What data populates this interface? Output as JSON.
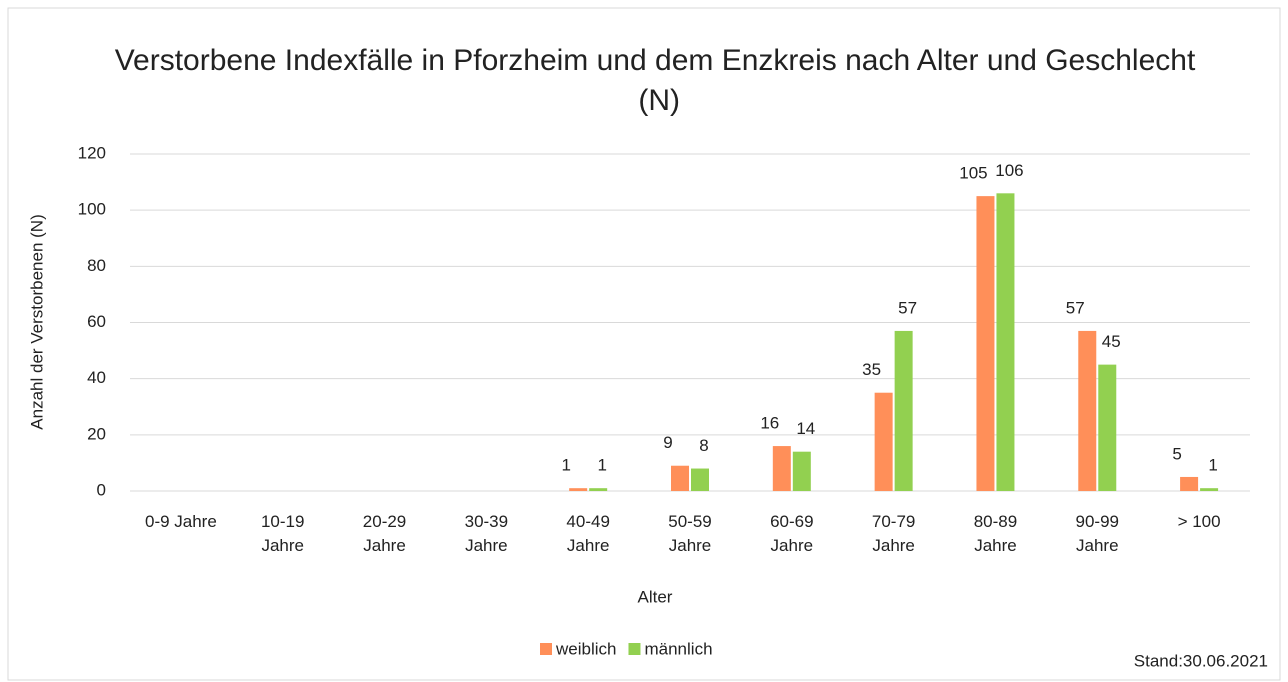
{
  "chart_data": {
    "type": "bar",
    "title": "Verstorbene Indexfälle in Pforzheim und dem Enzkreis nach Alter und Geschlecht (N)",
    "x_label": "Alter",
    "y_label": "Anzahl der Verstorbenen (N)",
    "annotation": "Stand:30.06.2021",
    "categories": [
      "0-9 Jahre",
      "10-19 Jahre",
      "20-29 Jahre",
      "30-39 Jahre",
      "40-49 Jahre",
      "50-59 Jahre",
      "60-69 Jahre",
      "70-79 Jahre",
      "80-89 Jahre",
      "90-99 Jahre",
      "> 100"
    ],
    "series": [
      {
        "name": "weiblich",
        "color": "#ff8f59",
        "values": [
          0,
          0,
          0,
          0,
          1,
          9,
          16,
          35,
          105,
          57,
          5
        ]
      },
      {
        "name": "männlich",
        "color": "#92d050",
        "values": [
          0,
          0,
          0,
          0,
          1,
          8,
          14,
          57,
          106,
          45,
          1
        ]
      }
    ],
    "ylim": [
      0,
      120
    ],
    "yticks": [
      0,
      20,
      40,
      60,
      80,
      100,
      120
    ],
    "grid": true,
    "legend": "bottom"
  }
}
